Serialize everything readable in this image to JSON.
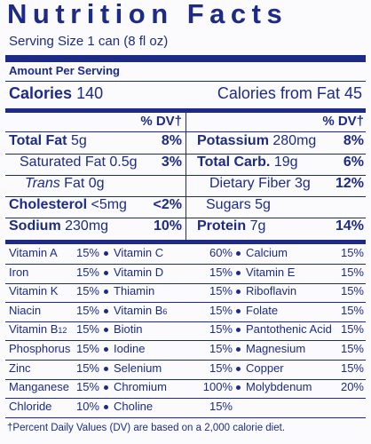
{
  "title": "Nutrition Facts",
  "serving": "Serving Size 1 can (8 fl oz)",
  "amount_per_serving": "Amount Per Serving",
  "calories": {
    "name": "Calories",
    "value": "140",
    "fat_name": "Calories from Fat",
    "fat_value": "45"
  },
  "dv_header": [
    "% DV†",
    "% DV†"
  ],
  "left": [
    {
      "name": "Total Fat",
      "amount": "5g",
      "dv": "8%"
    },
    {
      "name": "Saturated Fat",
      "amount": "0.5g",
      "dv": "3%"
    },
    {
      "name_italic": "Trans",
      "name": "Fat",
      "amount": "0g"
    },
    {
      "name": "Cholesterol",
      "amount": "<5mg",
      "dv": "<2%"
    },
    {
      "name": "Sodium",
      "amount": "230mg",
      "dv": "10%"
    }
  ],
  "right": [
    {
      "name": "Potassium",
      "amount": "280mg",
      "dv": "8%"
    },
    {
      "name": "Total Carb.",
      "amount": "19g",
      "dv": "6%"
    },
    {
      "name": "Dietary Fiber",
      "amount": "3g",
      "dv": "12%"
    },
    {
      "name": "Sugars",
      "amount": "5g"
    },
    {
      "name": "Protein",
      "amount": "7g",
      "dv": "14%"
    }
  ],
  "vitamins": [
    [
      {
        "name": "Vitamin A",
        "pct": "15%"
      },
      {
        "name": "Vitamin C",
        "pct": "60%"
      },
      {
        "name": "Calcium",
        "pct": "15%"
      }
    ],
    [
      {
        "name": "Iron",
        "pct": "15%"
      },
      {
        "name": "Vitamin D",
        "pct": "15%"
      },
      {
        "name": "Vitamin E",
        "pct": "15%"
      }
    ],
    [
      {
        "name": "Vitamin K",
        "pct": "15%"
      },
      {
        "name": "Thiamin",
        "pct": "15%"
      },
      {
        "name": "Riboflavin",
        "pct": "15%"
      }
    ],
    [
      {
        "name": "Niacin",
        "pct": "15%"
      },
      {
        "name": "Vitamin B",
        "sub": "6",
        "pct": "15%"
      },
      {
        "name": "Folate",
        "pct": "15%"
      }
    ],
    [
      {
        "name": "Vitamin B",
        "sub": "12",
        "pct": "15%"
      },
      {
        "name": "Biotin",
        "pct": "15%"
      },
      {
        "name": "Pantothenic Acid",
        "pct": "15%"
      }
    ],
    [
      {
        "name": "Phosphorus",
        "pct": "15%"
      },
      {
        "name": "Iodine",
        "pct": "15%"
      },
      {
        "name": "Magnesium",
        "pct": "15%"
      }
    ],
    [
      {
        "name": "Zinc",
        "pct": "15%"
      },
      {
        "name": "Selenium",
        "pct": "15%"
      },
      {
        "name": "Copper",
        "pct": "15%"
      }
    ],
    [
      {
        "name": "Manganese",
        "pct": "15%"
      },
      {
        "name": "Chromium",
        "pct": "100%"
      },
      {
        "name": "Molybdenum",
        "pct": "20%"
      }
    ],
    [
      {
        "name": "Chloride",
        "pct": "10%"
      },
      {
        "name": "Choline",
        "pct": "15%"
      }
    ]
  ],
  "footnote": "†Percent Daily Values (DV) are based on a 2,000 calorie diet."
}
